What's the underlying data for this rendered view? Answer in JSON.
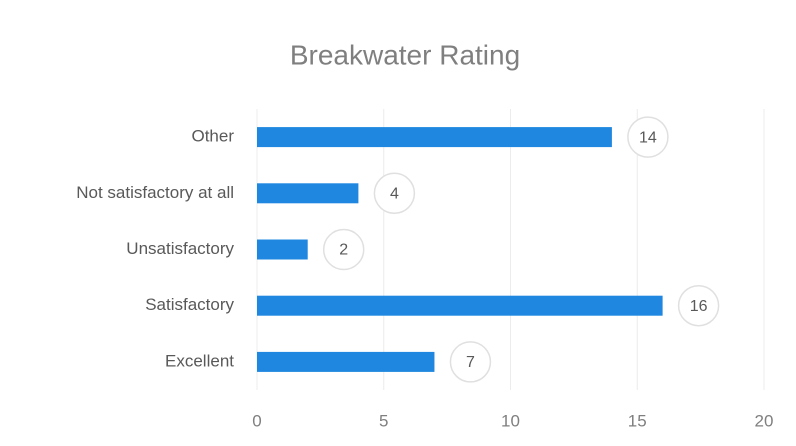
{
  "chart_data": {
    "type": "bar",
    "orientation": "horizontal",
    "title": "Breakwater Rating",
    "categories": [
      "Other",
      "Not satisfactory at all",
      "Unsatisfactory",
      "Satisfactory",
      "Excellent"
    ],
    "values": [
      14,
      4,
      2,
      16,
      7
    ],
    "color": "#1f87e0",
    "xlim": [
      0,
      20
    ],
    "xticks": [
      0,
      5,
      10,
      15,
      20
    ],
    "grid": true
  }
}
